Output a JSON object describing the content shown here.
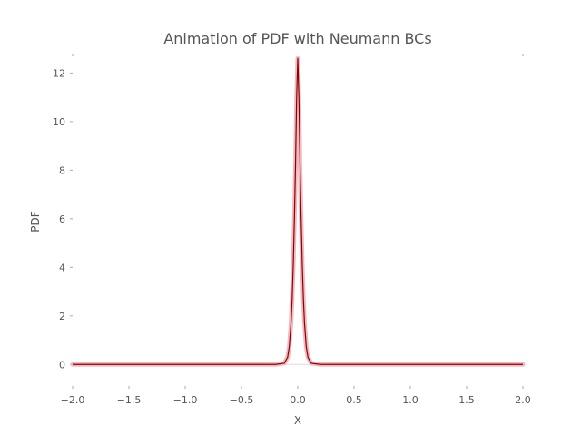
{
  "chart_data": {
    "type": "line",
    "title": "Animation of PDF with Neumann BCs",
    "xlabel": "X",
    "ylabel": "PDF",
    "xlim": [
      -2.0,
      2.0
    ],
    "ylim": [
      -1.0,
      12.8
    ],
    "x_ticks": [
      -2.0,
      -1.5,
      -1.0,
      -0.5,
      0.0,
      0.5,
      1.0,
      1.5,
      2.0
    ],
    "x_tick_labels": [
      "−2.0",
      "−1.5",
      "−1.0",
      "−0.5",
      "0.0",
      "0.5",
      "1.0",
      "1.5",
      "2.0"
    ],
    "y_ticks": [
      0,
      2,
      4,
      6,
      8,
      10,
      12
    ],
    "y_tick_labels": [
      "0",
      "2",
      "4",
      "6",
      "8",
      "10",
      "12"
    ],
    "grid": false,
    "series": [
      {
        "color": "#8b0000",
        "x": [
          -2.0,
          -1.0,
          -0.5,
          -0.2,
          -0.12,
          -0.09,
          -0.075,
          -0.06,
          -0.05,
          -0.04,
          -0.03,
          -0.02,
          -0.01,
          0.0,
          0.01,
          0.02,
          0.03,
          0.04,
          0.05,
          0.06,
          0.075,
          0.09,
          0.12,
          0.2,
          0.5,
          1.0,
          2.0
        ],
        "y": [
          0.0,
          0.0,
          0.0,
          0.0,
          0.05,
          0.3,
          0.75,
          1.7,
          2.7,
          4.1,
          6.0,
          8.2,
          11.0,
          12.6,
          11.0,
          8.2,
          6.0,
          4.1,
          2.7,
          1.7,
          0.75,
          0.3,
          0.05,
          0.0,
          0.0,
          0.0,
          0.0
        ]
      }
    ]
  }
}
